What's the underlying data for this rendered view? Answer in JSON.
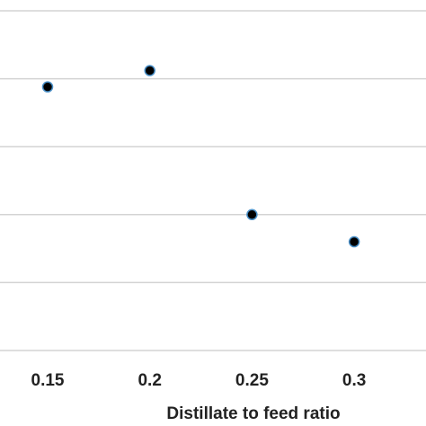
{
  "chart_data": {
    "type": "scatter",
    "title": "",
    "xlabel": "Distillate to feed ratio",
    "ylabel": "",
    "x_ticks": [
      "0.15",
      "0.2",
      "0.25",
      "0.3"
    ],
    "x": [
      0.15,
      0.2,
      0.25,
      0.3
    ],
    "y": [
      -0.12,
      0.12,
      -2.0,
      -2.4
    ],
    "ylim": [
      -4.0,
      1.0
    ],
    "grid": true,
    "legend": "none",
    "colors": {
      "marker_fill": "#000000",
      "marker_stroke": "#4a90c8",
      "grid": "#d3d3d3"
    }
  }
}
